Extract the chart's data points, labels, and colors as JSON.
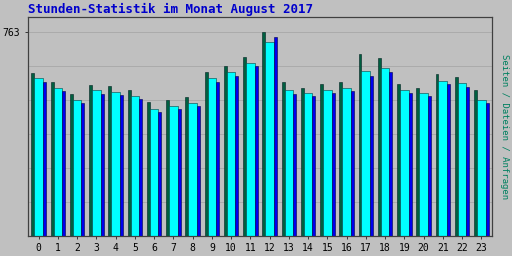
{
  "title": "Stunden-Statistik im Monat August 2017",
  "title_color": "#0000CC",
  "background_color": "#C0C0C0",
  "plot_bg_color": "#C0C0C0",
  "ylabel_right": "Seiten / Dateien / Anfragen",
  "ylabel_right_color": "#008060",
  "ytick_label": "763",
  "hours": [
    0,
    1,
    2,
    3,
    4,
    5,
    6,
    7,
    8,
    9,
    10,
    11,
    12,
    13,
    14,
    15,
    16,
    17,
    18,
    19,
    20,
    21,
    22,
    23
  ],
  "seiten": [
    610,
    575,
    530,
    565,
    560,
    545,
    500,
    510,
    520,
    615,
    635,
    670,
    763,
    575,
    555,
    570,
    575,
    680,
    665,
    570,
    555,
    605,
    595,
    545
  ],
  "dateien": [
    590,
    555,
    510,
    545,
    540,
    525,
    475,
    488,
    498,
    590,
    612,
    648,
    728,
    547,
    535,
    548,
    555,
    618,
    630,
    548,
    535,
    580,
    572,
    510
  ],
  "anfragen": [
    575,
    542,
    498,
    532,
    527,
    512,
    462,
    476,
    485,
    578,
    598,
    635,
    745,
    530,
    522,
    536,
    542,
    600,
    615,
    534,
    522,
    568,
    558,
    496
  ],
  "color_seiten": "#006040",
  "color_dateien": "#00FFFF",
  "color_anfragen": "#0000EE",
  "bw_green": 0.15,
  "bw_cyan": 0.45,
  "bw_blue": 0.15,
  "ylim_max": 820,
  "yline": 763,
  "grid_color": "#A8A8A8",
  "border_color": "#404040",
  "font_family": "monospace",
  "title_fontsize": 9,
  "tick_fontsize": 7
}
